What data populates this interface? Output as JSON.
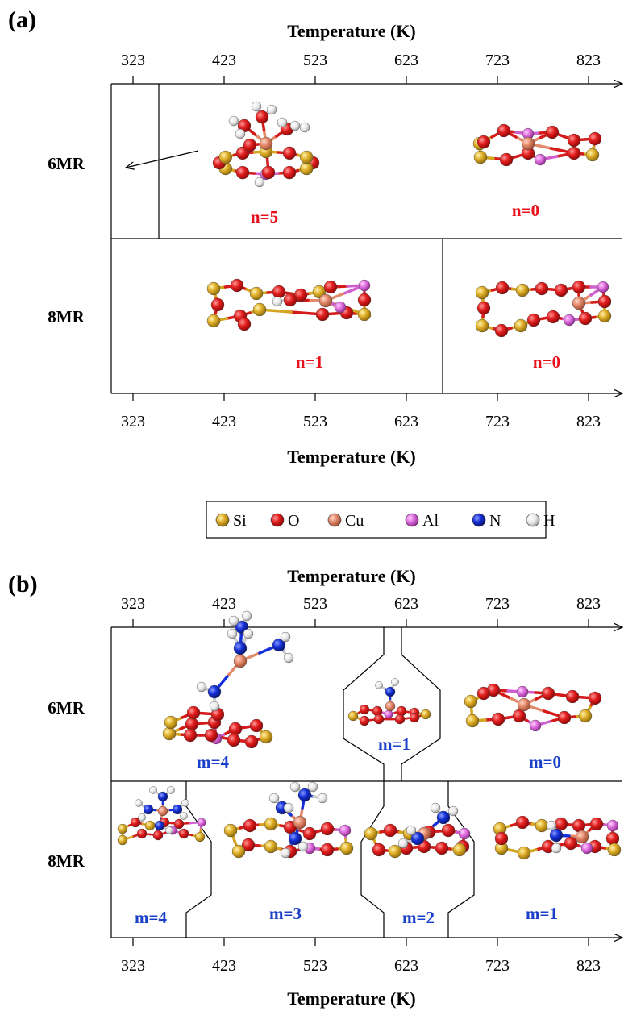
{
  "panels": [
    {
      "letter": "(a)",
      "axis_title": "Temperature (K)",
      "ticks": [
        "323",
        "423",
        "523",
        "623",
        "723",
        "823"
      ],
      "rows": [
        {
          "label": "6MR",
          "states": [
            {
              "label": "n=5",
              "color": "#e8101a",
              "structure": "Cu-hydrated-6MR"
            },
            {
              "label": "n=0",
              "color": "#e8101a",
              "structure": "Cu-bare-6MR"
            }
          ]
        },
        {
          "label": "8MR",
          "states": [
            {
              "label": "n=1",
              "color": "#e8101a",
              "structure": "Cu-OH-8MR"
            },
            {
              "label": "n=0",
              "color": "#e8101a",
              "structure": "Cu-bare-8MR"
            }
          ]
        }
      ]
    },
    {
      "letter": "(b)",
      "axis_title": "Temperature (K)",
      "ticks": [
        "323",
        "423",
        "523",
        "623",
        "723",
        "823"
      ],
      "rows": [
        {
          "label": "6MR",
          "states": [
            {
              "label": "m=4",
              "color": "#1a3fc8",
              "structure": "Cu-NH3x4-6MR"
            },
            {
              "label": "m=1",
              "color": "#1a3fc8",
              "structure": "Cu-NH3x1-6MR"
            },
            {
              "label": "m=0",
              "color": "#1a3fc8",
              "structure": "Cu-bare-6MR"
            }
          ]
        },
        {
          "label": "8MR",
          "states": [
            {
              "label": "m=4",
              "color": "#1a3fc8",
              "structure": "Cu-NH3x4-8MR"
            },
            {
              "label": "m=3",
              "color": "#1a3fc8",
              "structure": "Cu-NH3x3-8MR"
            },
            {
              "label": "m=2",
              "color": "#1a3fc8",
              "structure": "Cu-NH3x2-8MR"
            },
            {
              "label": "m=1",
              "color": "#1a3fc8",
              "structure": "Cu-NH3x1-8MR"
            }
          ]
        }
      ]
    }
  ],
  "legend": [
    {
      "symbol": "Si",
      "color": "#e0b02a"
    },
    {
      "symbol": "O",
      "color": "#e21e1e"
    },
    {
      "symbol": "Cu",
      "color": "#e48a6c"
    },
    {
      "symbol": "Al",
      "color": "#e070e0"
    },
    {
      "symbol": "N",
      "color": "#1530d8"
    },
    {
      "symbol": "H",
      "color": "#f0f0f0"
    }
  ]
}
